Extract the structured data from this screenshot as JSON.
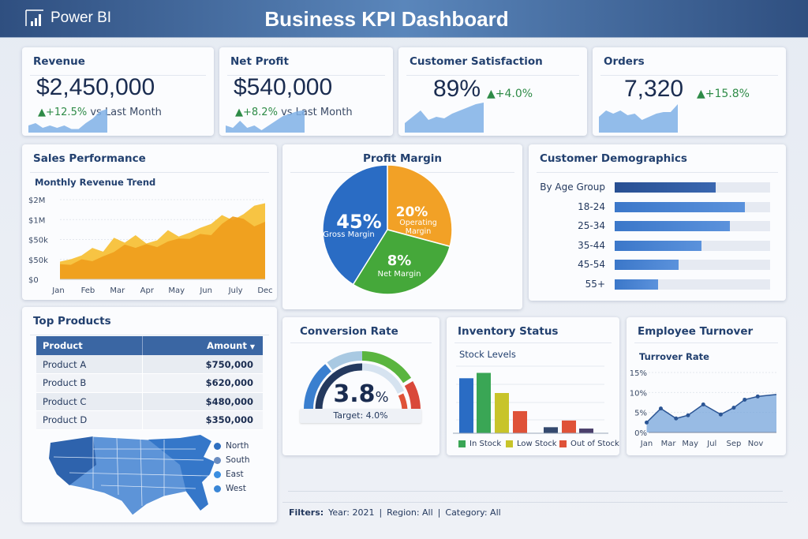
{
  "header": {
    "app_name": "Power BI",
    "title": "Business KPI Dashboard"
  },
  "kpis": [
    {
      "title": "Revenue",
      "value": "$2,450,000",
      "change": "+12.5%",
      "suffix": "vs Last Month",
      "spark": [
        3,
        4,
        2,
        3,
        2,
        3,
        1.5,
        1.5,
        4,
        6,
        9,
        10
      ]
    },
    {
      "title": "Net Profit",
      "value": "$540,000",
      "change": "+8.2%",
      "suffix": "vs Last Month",
      "spark": [
        3,
        2,
        5,
        2,
        3,
        1,
        3,
        5,
        7,
        8,
        9,
        9.5
      ]
    },
    {
      "title": "Customer Satisfaction",
      "value": "89%",
      "change": "+4.0%",
      "suffix": "",
      "spark": [
        3,
        5,
        7,
        4,
        5,
        4.5,
        6,
        7,
        8,
        9,
        9.5
      ]
    },
    {
      "title": "Orders",
      "value": "7,320",
      "change": "+15.8%",
      "suffix": "",
      "spark": [
        5,
        7,
        6,
        7,
        5.5,
        6,
        4,
        5,
        6,
        6.5,
        6.5,
        9
      ]
    }
  ],
  "colors": {
    "accent": "#2e8b47",
    "header": "#3b5e92",
    "in_stock": "#3aa655",
    "low_stock": "#c8c42a",
    "out_of_stock": "#df5238"
  },
  "sales": {
    "title": "Sales Performance",
    "chart_data": {
      "type": "area",
      "title": "Monthly Revenue Trend",
      "y_ticks": [
        "$0",
        "$50k",
        "$50k",
        "$1M",
        "$2M"
      ],
      "x_ticks": [
        "Jan",
        "Feb",
        "Mar",
        "Apr",
        "May",
        "Jun",
        "July",
        "Dec"
      ],
      "grid": true,
      "series": [
        {
          "values": [
            0.89,
            1.01,
            1.2,
            1.58,
            1.39,
            2.09,
            1.84,
            2.22,
            1.8,
            1.96,
            2.47,
            2.15,
            2.34,
            2.59,
            2.78,
            3.23,
            2.97,
            3.27,
            3.7,
            3.82
          ]
        },
        {
          "values": [
            0.76,
            0.73,
            1.01,
            0.91,
            1.16,
            1.37,
            1.75,
            1.58,
            1.77,
            1.62,
            1.9,
            2.05,
            2.03,
            2.28,
            2.22,
            2.78,
            3.16,
            3.04,
            2.66,
            2.89
          ]
        }
      ]
    }
  },
  "profit": {
    "title": "Profit Margin",
    "chart_data": {
      "type": "pie",
      "slices": [
        {
          "label": "Gross Margin",
          "value": "45%",
          "color": "#2a6cc4"
        },
        {
          "label": "Operating Margin",
          "value": "20%",
          "color": "#f2a126"
        },
        {
          "label": "Net Margin",
          "value": "8%",
          "color": "#45a83a"
        }
      ]
    }
  },
  "demographics": {
    "title": "Customer Demographics",
    "chart_data": {
      "type": "bar",
      "categories": [
        "By Age Group",
        "18-24",
        "25-34",
        "35-44",
        "45-54",
        "55+"
      ],
      "values": [
        0.65,
        0.84,
        0.74,
        0.56,
        0.41,
        0.28
      ]
    }
  },
  "products": {
    "title": "Top Products",
    "headers": [
      "Product",
      "Amount"
    ],
    "rows": [
      [
        "Product A",
        "$750,000"
      ],
      [
        "Product B",
        "$620,000"
      ],
      [
        "Product C",
        "$480,000"
      ],
      [
        "Product D",
        "$350,000"
      ]
    ],
    "legend": [
      {
        "label": "North",
        "color": "#2f6fc0"
      },
      {
        "label": "South",
        "color": "#6a8cc0"
      },
      {
        "label": "East",
        "color": "#3b8ee0"
      },
      {
        "label": "West",
        "color": "#3a86d6"
      }
    ]
  },
  "conversion": {
    "title": "Conversion Rate",
    "value": "3.8",
    "unit": "%",
    "target": "Target: 4.0%",
    "fraction": 0.95
  },
  "inventory": {
    "title": "Inventory Status",
    "chart_data": {
      "type": "bar",
      "title": "Stock Levels",
      "values": [
        0.82,
        0.9,
        0.6,
        0.33,
        0.09,
        0.19,
        0.07
      ],
      "colors": [
        "#2a6cc4",
        "#3aa655",
        "#c8c42a",
        "#df5238",
        "#34496e",
        "#df5238",
        "#4a3f6b"
      ],
      "legend": [
        "In Stock",
        "Low Stock",
        "Out of Stock"
      ]
    }
  },
  "turnover": {
    "title": "Employee Turnover",
    "chart_data": {
      "type": "area",
      "title": "Turrover Rate",
      "y_ticks": [
        "0%",
        "5%",
        "10%",
        "15%"
      ],
      "ylim": [
        0,
        15
      ],
      "x_ticks": [
        "Jan",
        "Mar",
        "May",
        "Jul",
        "Sep",
        "Nov"
      ],
      "points": [
        [
          1,
          2.5
        ],
        [
          2.3,
          6
        ],
        [
          3.7,
          3.5
        ],
        [
          4.8,
          4.3
        ],
        [
          6.2,
          7
        ],
        [
          7.8,
          4.5
        ],
        [
          9,
          6.2
        ],
        [
          10,
          8.2
        ],
        [
          11.2,
          9
        ]
      ]
    }
  },
  "filters": {
    "label": "Filters:",
    "items": [
      "Year: 2021",
      "Region: All",
      "Category: All"
    ]
  }
}
